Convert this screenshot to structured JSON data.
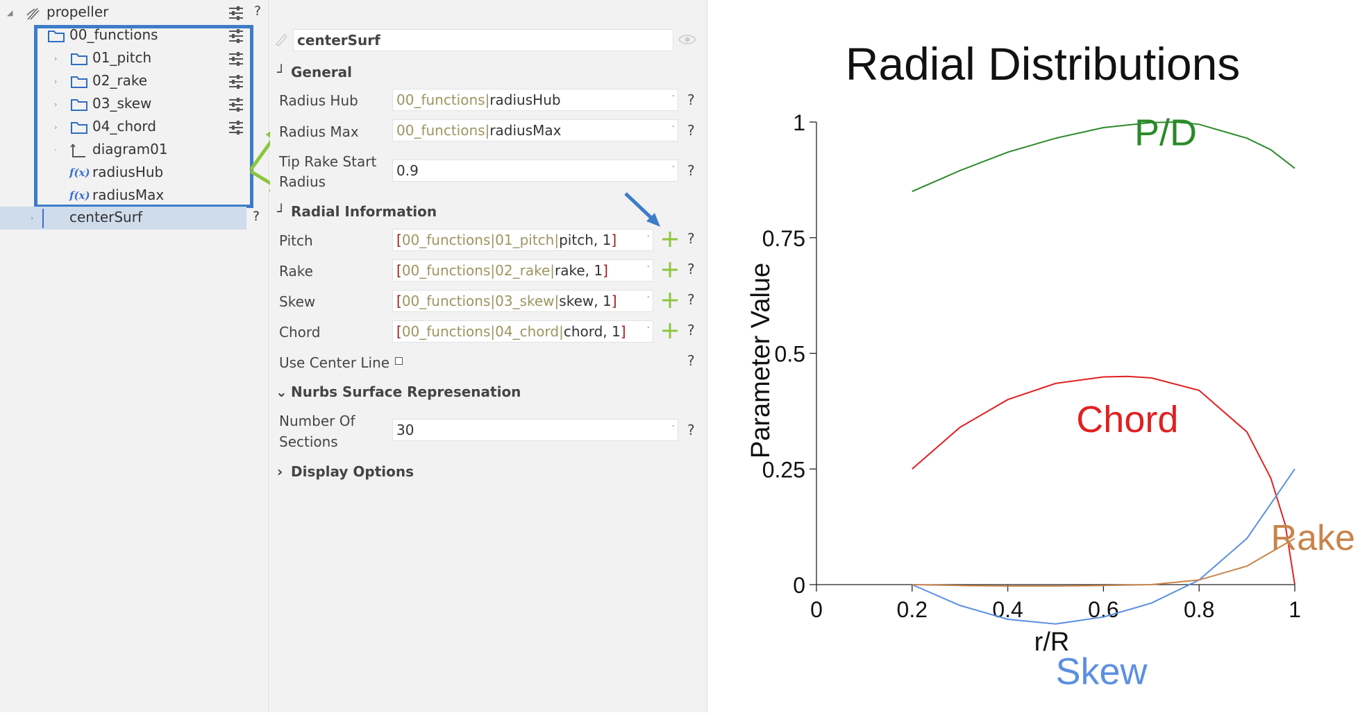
{
  "tree": {
    "items": [
      {
        "label": "propeller",
        "icon": "brush-icon"
      },
      {
        "label": "00_functions",
        "icon": "folder-icon"
      },
      {
        "label": "01_pitch",
        "icon": "folder-icon"
      },
      {
        "label": "02_rake",
        "icon": "folder-icon"
      },
      {
        "label": "03_skew",
        "icon": "folder-icon"
      },
      {
        "label": "04_chord",
        "icon": "folder-icon"
      },
      {
        "label": "diagram01",
        "icon": "axes-icon"
      },
      {
        "label": "radiusHub",
        "icon": "function-icon",
        "badge": "f(x)"
      },
      {
        "label": "radiusMax",
        "icon": "function-icon",
        "badge": "f(x)"
      },
      {
        "label": "centerSurf",
        "icon": "surface-icon"
      }
    ],
    "help": "?",
    "highlight_color": "#3d7cc9"
  },
  "props": {
    "name": "centerSurf",
    "general_title": "General",
    "radius_hub_label": "Radius Hub",
    "radius_hub_ref": "00_functions",
    "radius_hub_sep": "|",
    "radius_hub_value": "radiusHub",
    "radius_max_label": "Radius Max",
    "radius_max_ref": "00_functions",
    "radius_max_sep": "|",
    "radius_max_value": "radiusMax",
    "tip_rake_label_1": "Tip Rake Start",
    "tip_rake_label_2": "Radius",
    "tip_rake_value": "0.9",
    "radial_title": "Radial Information",
    "radial_rows": [
      {
        "label": "Pitch",
        "open": "[",
        "folder": "00_functions",
        "sep1": "|",
        "sub": "01_pitch",
        "sep2": "|",
        "value": "pitch, 1",
        "close": "]"
      },
      {
        "label": "Rake",
        "open": "[",
        "folder": "00_functions",
        "sep1": "|",
        "sub": "02_rake",
        "sep2": "|",
        "value": "rake, 1",
        "close": "]"
      },
      {
        "label": "Skew",
        "open": "[",
        "folder": "00_functions",
        "sep1": "|",
        "sub": "03_skew",
        "sep2": "|",
        "value": "skew, 1",
        "close": "]"
      },
      {
        "label": "Chord",
        "open": "[",
        "folder": "00_functions",
        "sep1": "|",
        "sub": "04_chord",
        "sep2": "|",
        "value": "chord, 1",
        "close": "]"
      }
    ],
    "center_line_label": "Use Center Line",
    "nurbs_title": "Nurbs Surface Represenation",
    "sections_label_1": "Number Of",
    "sections_label_2": "Sections",
    "sections_value": "30",
    "display_title": "Display Options",
    "help": "?",
    "dot": "·"
  },
  "chart_data": {
    "type": "line",
    "title": "Radial Distributions",
    "xlabel": "r/R",
    "ylabel": "Parameter Value",
    "xlim": [
      0,
      1
    ],
    "ylim": [
      0,
      1
    ],
    "xticks": [
      "0",
      "0.2",
      "0.4",
      "0.6",
      "0.8",
      "1"
    ],
    "yticks": [
      "0",
      "0.25",
      "0.5",
      "0.75",
      "1"
    ],
    "series": [
      {
        "name": "P/D",
        "color": "#2a8a2a",
        "x": [
          0.2,
          0.3,
          0.4,
          0.5,
          0.6,
          0.7,
          0.75,
          0.8,
          0.9,
          0.95,
          1.0
        ],
        "y": [
          0.85,
          0.895,
          0.935,
          0.965,
          0.988,
          0.999,
          1.0,
          0.995,
          0.965,
          0.94,
          0.9
        ]
      },
      {
        "name": "Chord",
        "color": "#e02020",
        "x": [
          0.2,
          0.3,
          0.4,
          0.5,
          0.6,
          0.65,
          0.7,
          0.8,
          0.9,
          0.95,
          0.98,
          1.0
        ],
        "y": [
          0.25,
          0.34,
          0.4,
          0.435,
          0.449,
          0.45,
          0.447,
          0.42,
          0.33,
          0.23,
          0.13,
          0.0
        ]
      },
      {
        "name": "Skew",
        "color": "#5b8fe0",
        "x": [
          0.2,
          0.3,
          0.4,
          0.5,
          0.6,
          0.7,
          0.8,
          0.9,
          1.0
        ],
        "y": [
          0.0,
          -0.045,
          -0.075,
          -0.085,
          -0.07,
          -0.04,
          0.01,
          0.1,
          0.25
        ]
      },
      {
        "name": "Rake",
        "color": "#c8844a",
        "x": [
          0.2,
          0.3,
          0.4,
          0.5,
          0.6,
          0.7,
          0.8,
          0.9,
          1.0
        ],
        "y": [
          0.0,
          -0.002,
          -0.003,
          -0.003,
          -0.002,
          0.0,
          0.01,
          0.04,
          0.1
        ]
      }
    ]
  }
}
